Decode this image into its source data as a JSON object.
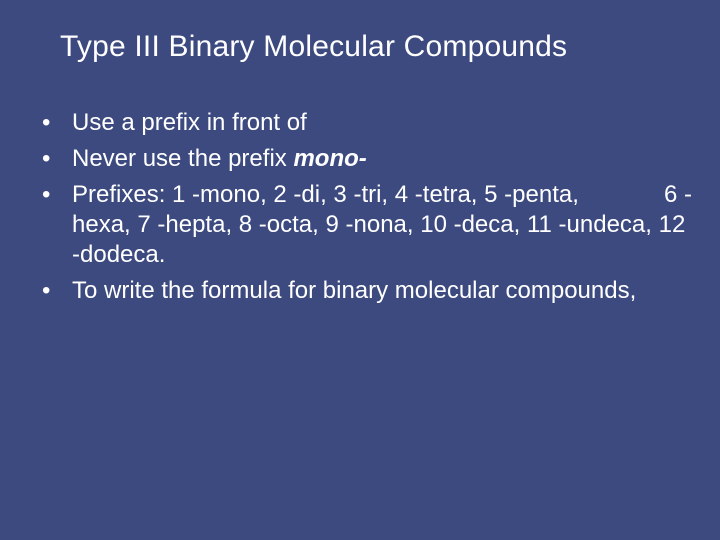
{
  "slide": {
    "background_color": "#3d4a80",
    "text_color": "#ffffff",
    "title": "Type III Binary Molecular Compounds",
    "title_fontsize": 30,
    "body_fontsize": 24,
    "bullets": {
      "b1": "Use a prefix in front of",
      "b2_prefix": "Never use the prefix ",
      "b2_emph": "mono-",
      "b3_main": "Prefixes:  1 -mono, 2 -di, 3 -tri, 4 -tetra, 5 -penta,",
      "b3_right": "6 -",
      "b3_cont": "hexa, 7 -hepta, 8 -octa, 9 -nona, 10 -deca, 11 -undeca, 12 -dodeca.",
      "b4": "To write the formula for binary molecular compounds,"
    }
  }
}
